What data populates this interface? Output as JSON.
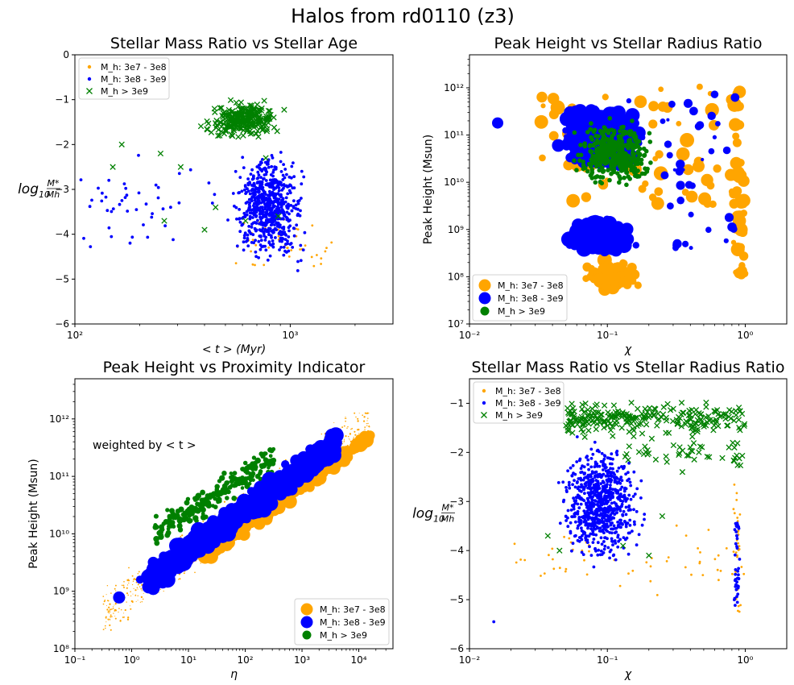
{
  "suptitle": "Halos from rd0110 (z3)",
  "colors": {
    "low": "#FFA500",
    "mid": "#0000FF",
    "high": "#008000"
  },
  "legend_labels": [
    "M_h: 3e7 - 3e8",
    "M_h: 3e8 - 3e9",
    "M_h > 3e9"
  ],
  "chart_data": [
    {
      "type": "scatter",
      "title": "Stellar Mass Ratio vs Stellar Age",
      "xlabel": "< t > (Myr)",
      "ylabel": "log10 M*/Mh",
      "ylabel_main": "log",
      "ylabel_sub": "10",
      "ylabel_num": "M*",
      "ylabel_den": "Mh",
      "xscale": "log",
      "xlim": [
        100,
        3000
      ],
      "ylim": [
        -6,
        0
      ],
      "xticks": [
        "10²",
        "10³"
      ],
      "yticks": [
        "0",
        "−1",
        "−2",
        "−3",
        "−4",
        "−5",
        "−6"
      ],
      "legend_loc": "upper left",
      "series": [
        {
          "name": "M_h: 3e7 - 3e8",
          "marker": "dot",
          "x_range": [
            300,
            1600
          ],
          "y_range": [
            -5.2,
            -2.8
          ],
          "values_sample": [
            [
              450,
              -4.6
            ],
            [
              700,
              -3.6
            ],
            [
              900,
              -3.9
            ],
            [
              1150,
              -4.4
            ],
            [
              1400,
              -4.2
            ],
            [
              1500,
              -4.8
            ]
          ]
        },
        {
          "name": "M_h: 3e8 - 3e9",
          "marker": "dot",
          "x_range": [
            100,
            1800
          ],
          "y_range": [
            -5.5,
            -1.0
          ],
          "values_sample": [
            [
              100,
              -4.2
            ],
            [
              120,
              -2.5
            ],
            [
              180,
              -2.4
            ],
            [
              190,
              -4.5
            ],
            [
              260,
              -3.5
            ],
            [
              600,
              -3.6
            ],
            [
              900,
              -3.3
            ],
            [
              1200,
              -3.0
            ],
            [
              1500,
              -2.6
            ],
            [
              1800,
              -5.2
            ]
          ]
        },
        {
          "name": "M_h > 3e9",
          "marker": "x",
          "x_range": [
            150,
            1000
          ],
          "y_range": [
            -4.1,
            -0.8
          ],
          "values_sample": [
            [
              150,
              -2.5
            ],
            [
              165,
              -2.0
            ],
            [
              260,
              -3.7
            ],
            [
              400,
              -3.9
            ],
            [
              450,
              -1.6
            ],
            [
              650,
              -1.2
            ],
            [
              750,
              -1.4
            ],
            [
              850,
              -1.0
            ]
          ]
        }
      ]
    },
    {
      "type": "scatter",
      "title": "Peak Height vs Stellar Radius Ratio",
      "xlabel": "χ",
      "ylabel": "Peak Height (Msun)",
      "xscale": "log",
      "yscale": "log",
      "xlim": [
        0.01,
        2
      ],
      "ylim": [
        10000000.0,
        5000000000000.0
      ],
      "xticks": [
        "10⁻²",
        "10⁻¹",
        "10⁰"
      ],
      "yticks": [
        "10⁷",
        "10⁸",
        "10⁹",
        "10¹⁰",
        "10¹¹",
        "10¹²"
      ],
      "legend_loc": "lower left",
      "series": [
        {
          "name": "M_h: 3e7 - 3e8",
          "marker": "dot",
          "x_range": [
            0.03,
            1.0
          ],
          "y_range": [
            50000000.0,
            1300000000000.0
          ]
        },
        {
          "name": "M_h: 3e8 - 3e9",
          "marker": "dot",
          "x_range": [
            0.015,
            0.9
          ],
          "y_range": [
            200000000.0,
            1300000000000.0
          ]
        },
        {
          "name": "M_h > 3e9",
          "marker": "dot",
          "x_range": [
            0.04,
            0.9
          ],
          "y_range": [
            1500000000.0,
            1300000000000.0
          ]
        }
      ]
    },
    {
      "type": "scatter",
      "title": "Peak Height vs Proximity Indicator",
      "xlabel": "η",
      "ylabel": "Peak Height (Msun)",
      "annotation": "weighted by < t >",
      "xscale": "log",
      "yscale": "log",
      "xlim": [
        0.1,
        40000
      ],
      "ylim": [
        100000000.0,
        5000000000000.0
      ],
      "xticks": [
        "10⁻¹",
        "10⁰",
        "10¹",
        "10²",
        "10³",
        "10⁴"
      ],
      "yticks": [
        "10⁸",
        "10⁹",
        "10¹⁰",
        "10¹¹",
        "10¹²"
      ],
      "legend_loc": "lower right",
      "series": [
        {
          "name": "M_h: 3e7 - 3e8",
          "marker": "dot",
          "x_range": [
            0.3,
            15000
          ],
          "y_range": [
            300000000.0,
            1300000000000.0
          ]
        },
        {
          "name": "M_h: 3e8 - 3e9",
          "marker": "dot",
          "x_range": [
            0.6,
            5000
          ],
          "y_range": [
            750000000.0,
            1300000000000.0
          ]
        },
        {
          "name": "M_h > 3e9",
          "marker": "dot",
          "x_range": [
            0.3,
            300
          ],
          "y_range": [
            4000000000.0,
            1300000000000.0
          ]
        }
      ]
    },
    {
      "type": "scatter",
      "title": "Stellar Mass Ratio vs Stellar Radius Ratio",
      "xlabel": "χ",
      "ylabel": "log10 M*/Mh",
      "ylabel_main": "log",
      "ylabel_sub": "10",
      "ylabel_num": "M*",
      "ylabel_den": "Mh",
      "xscale": "log",
      "xlim": [
        0.01,
        2
      ],
      "ylim": [
        -6,
        -0.5
      ],
      "xticks": [
        "10⁻²",
        "10⁻¹",
        "10⁰"
      ],
      "yticks": [
        "−1",
        "−2",
        "−3",
        "−4",
        "−5",
        "−6"
      ],
      "legend_loc": "upper left",
      "series": [
        {
          "name": "M_h: 3e7 - 3e8",
          "marker": "dot",
          "x_range": [
            0.02,
            1.0
          ],
          "y_range": [
            -5.2,
            -2.6
          ]
        },
        {
          "name": "M_h: 3e8 - 3e9",
          "marker": "dot",
          "x_range": [
            0.015,
            0.9
          ],
          "y_range": [
            -5.5,
            -1.0
          ]
        },
        {
          "name": "M_h > 3e9",
          "marker": "x",
          "x_range": [
            0.035,
            1.0
          ],
          "y_range": [
            -4.1,
            -0.8
          ]
        }
      ]
    }
  ]
}
